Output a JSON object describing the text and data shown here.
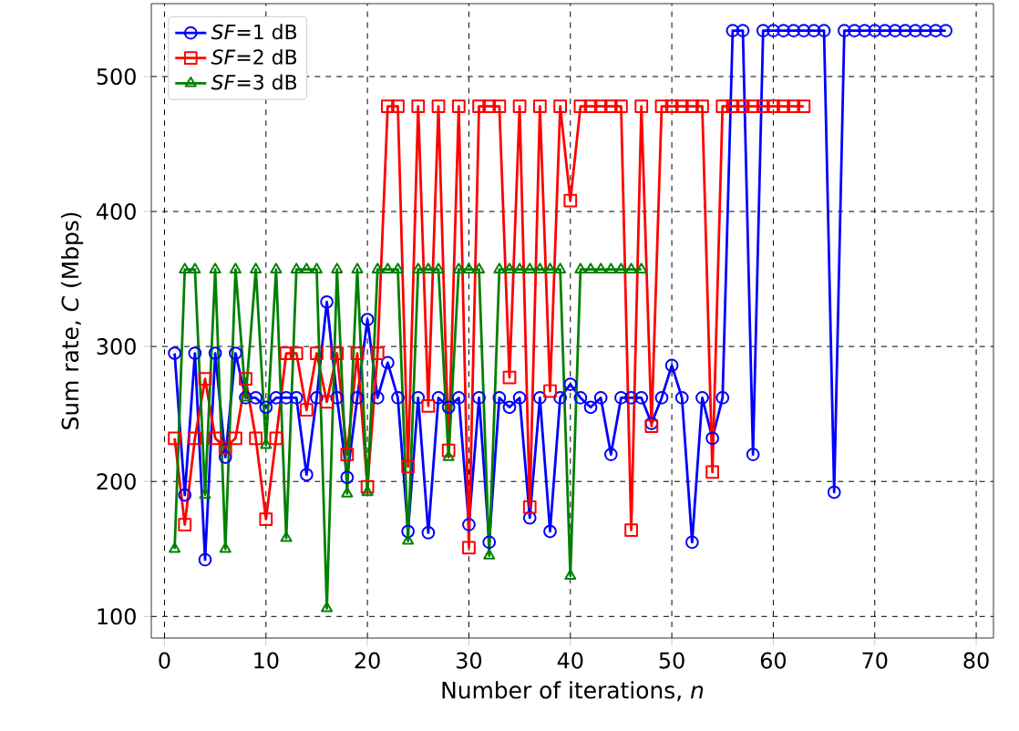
{
  "chart_data": {
    "type": "line",
    "xlabel": "Number of iterations, *n*",
    "ylabel": "Sum rate, *C* (Mbps)",
    "xlim": [
      -1.3,
      81.7
    ],
    "ylim": [
      84,
      554
    ],
    "xticks": [
      0,
      10,
      20,
      30,
      40,
      50,
      60,
      70,
      80
    ],
    "yticks": [
      100,
      200,
      300,
      400,
      500
    ],
    "grid": true,
    "legend": "top left",
    "line_style": "solid",
    "series": [
      {
        "name": "*SF*=1 dB",
        "color": "#0000ff",
        "marker": "circle",
        "x": [
          1,
          2,
          3,
          4,
          5,
          6,
          7,
          8,
          9,
          10,
          11,
          12,
          13,
          14,
          15,
          16,
          17,
          18,
          19,
          20,
          21,
          22,
          23,
          24,
          25,
          26,
          27,
          28,
          29,
          30,
          31,
          32,
          33,
          34,
          35,
          36,
          37,
          38,
          39,
          40,
          41,
          42,
          43,
          44,
          45,
          46,
          47,
          48,
          49,
          50,
          51,
          52,
          53,
          54,
          55,
          56,
          57,
          58,
          59,
          60,
          61,
          62,
          63,
          64,
          65,
          66,
          67,
          68,
          69,
          70,
          71,
          72,
          73,
          74,
          75,
          76,
          77
        ],
        "values": [
          295,
          190,
          295,
          142,
          295,
          218,
          295,
          262,
          262,
          255,
          262,
          262,
          262,
          205,
          262,
          333,
          262,
          203,
          262,
          320,
          262,
          288,
          262,
          163,
          262,
          162,
          262,
          255,
          262,
          168,
          262,
          155,
          262,
          255,
          262,
          173,
          262,
          163,
          262,
          272,
          262,
          255,
          262,
          220,
          262,
          262,
          262,
          243,
          262,
          286,
          262,
          155,
          262,
          232,
          262,
          534,
          534,
          220,
          534,
          534,
          534,
          534,
          534,
          534,
          534,
          192,
          534,
          534,
          534,
          534,
          534,
          534,
          534,
          534,
          534,
          534,
          534
        ]
      },
      {
        "name": "*SF*=2 dB",
        "color": "#ff0000",
        "marker": "square",
        "x": [
          1,
          2,
          3,
          4,
          5,
          6,
          7,
          8,
          9,
          10,
          11,
          12,
          13,
          14,
          15,
          16,
          17,
          18,
          19,
          20,
          21,
          22,
          23,
          24,
          25,
          26,
          27,
          28,
          29,
          30,
          31,
          32,
          33,
          34,
          35,
          36,
          37,
          38,
          39,
          40,
          41,
          42,
          43,
          44,
          45,
          46,
          47,
          48,
          49,
          50,
          51,
          52,
          53,
          54,
          55,
          56,
          57,
          58,
          59,
          60,
          61,
          62,
          63
        ],
        "values": [
          232,
          168,
          232,
          276,
          232,
          225,
          232,
          276,
          232,
          172,
          232,
          295,
          295,
          253,
          295,
          259,
          295,
          220,
          295,
          196,
          295,
          478,
          478,
          211,
          478,
          256,
          478,
          223,
          478,
          151,
          478,
          478,
          478,
          277,
          478,
          181,
          478,
          267,
          478,
          408,
          478,
          478,
          478,
          478,
          478,
          164,
          478,
          241,
          478,
          478,
          478,
          478,
          478,
          207,
          478,
          478,
          478,
          478,
          478,
          478,
          478,
          478,
          478
        ]
      },
      {
        "name": "*SF*=3 dB",
        "color": "#008000",
        "marker": "triangle",
        "x": [
          1,
          2,
          3,
          4,
          5,
          6,
          7,
          8,
          9,
          10,
          11,
          12,
          13,
          14,
          15,
          16,
          17,
          18,
          19,
          20,
          21,
          22,
          23,
          24,
          25,
          26,
          27,
          28,
          29,
          30,
          31,
          32,
          33,
          34,
          35,
          36,
          37,
          38,
          39,
          40,
          41,
          42,
          43,
          44,
          45,
          46,
          47
        ],
        "values": [
          150,
          357,
          357,
          190,
          357,
          150,
          357,
          262,
          357,
          227,
          357,
          158,
          357,
          357,
          357,
          106,
          357,
          191,
          357,
          192,
          357,
          357,
          357,
          156,
          357,
          357,
          357,
          218,
          357,
          357,
          357,
          145,
          357,
          357,
          357,
          357,
          357,
          357,
          357,
          130,
          357,
          357,
          357,
          357,
          357,
          357,
          357
        ]
      }
    ]
  }
}
